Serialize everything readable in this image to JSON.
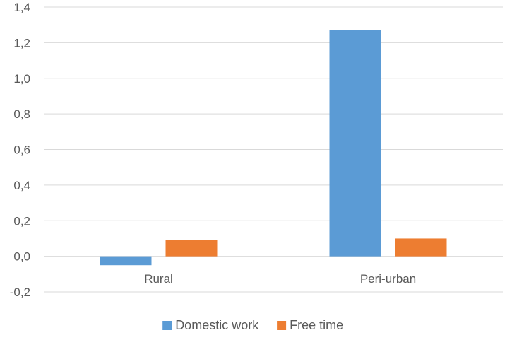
{
  "chart_data": {
    "type": "bar",
    "categories": [
      "Rural",
      "Peri-urban"
    ],
    "series": [
      {
        "name": "Domestic work",
        "values": [
          -0.05,
          1.27
        ],
        "color": "#5B9BD5"
      },
      {
        "name": "Free time",
        "values": [
          0.09,
          0.1
        ],
        "color": "#ED7D31"
      }
    ],
    "ylim": [
      -0.2,
      1.4
    ],
    "yticks": [
      "-0,2",
      "0,0",
      "0,2",
      "0,4",
      "0,6",
      "0,8",
      "1,0",
      "1,2",
      "1,4"
    ],
    "grid": true,
    "legend_position": "bottom",
    "title": "",
    "xlabel": "",
    "ylabel": ""
  }
}
